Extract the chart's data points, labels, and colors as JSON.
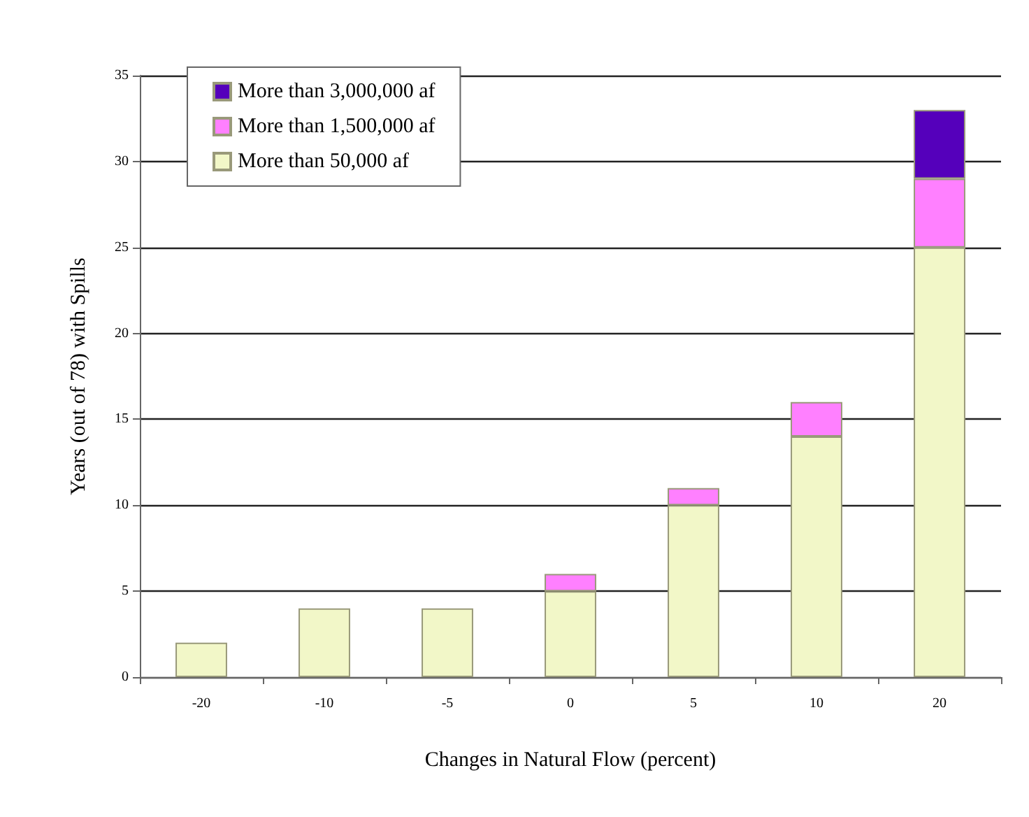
{
  "chart_data": {
    "type": "bar",
    "stacked": true,
    "xlabel": "Changes in Natural Flow (percent)",
    "ylabel": "Years (out of 78) with Spills",
    "categories": [
      "-20",
      "-10",
      "-5",
      "0",
      "5",
      "10",
      "20"
    ],
    "series": [
      {
        "name": "More than 50,000 af",
        "color": "#f2f7c8",
        "values": [
          2,
          4,
          4,
          5,
          10,
          14,
          25
        ]
      },
      {
        "name": "More than 1,500,000 af",
        "color": "#ff80ff",
        "values": [
          0,
          0,
          0,
          1,
          1,
          2,
          4
        ]
      },
      {
        "name": "More than 3,000,000 af",
        "color": "#5500bb",
        "values": [
          0,
          0,
          0,
          0,
          0,
          0,
          4
        ]
      }
    ],
    "ylim": [
      0,
      35
    ],
    "yticks": [
      0,
      5,
      10,
      15,
      20,
      25,
      30,
      35
    ],
    "grid": "y",
    "legend": "top left"
  }
}
